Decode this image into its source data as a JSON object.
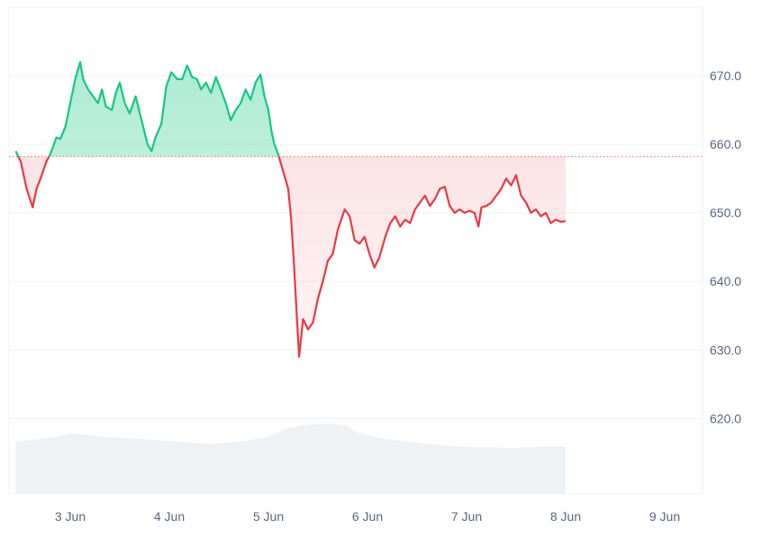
{
  "chart_data": {
    "type": "area",
    "baseline": 658.2,
    "ylim": [
      609,
      680
    ],
    "y_ticks": [
      620,
      630,
      640,
      650,
      660,
      670
    ],
    "y_tick_labels": [
      "620.0",
      "630.0",
      "640.0",
      "650.0",
      "660.0",
      "670.0"
    ],
    "x_ticks": [
      "3 Jun",
      "4 Jun",
      "5 Jun",
      "6 Jun",
      "7 Jun",
      "8 Jun",
      "9 Jun"
    ],
    "x_range_days": [
      2.45,
      9.4
    ],
    "grid": true,
    "colors": {
      "up_line": "#16c784",
      "up_fill": "#16c784",
      "down_line": "#ea3943",
      "down_fill": "#ea3943",
      "baseline": "#ea3943",
      "volume": "#eff2f5",
      "grid": "#eff2f5",
      "axis_text": "#58667e"
    },
    "price_series": [
      [
        2.45,
        659.0
      ],
      [
        2.5,
        657.5
      ],
      [
        2.56,
        653.5
      ],
      [
        2.62,
        650.8
      ],
      [
        2.66,
        653.5
      ],
      [
        2.7,
        655.0
      ],
      [
        2.76,
        657.5
      ],
      [
        2.8,
        658.6
      ],
      [
        2.86,
        661.0
      ],
      [
        2.9,
        660.8
      ],
      [
        2.95,
        662.5
      ],
      [
        3.0,
        666.0
      ],
      [
        3.05,
        669.5
      ],
      [
        3.1,
        672.0
      ],
      [
        3.13,
        669.5
      ],
      [
        3.18,
        668.0
      ],
      [
        3.23,
        667.0
      ],
      [
        3.28,
        666.0
      ],
      [
        3.32,
        668.0
      ],
      [
        3.36,
        665.5
      ],
      [
        3.42,
        665.0
      ],
      [
        3.46,
        667.5
      ],
      [
        3.5,
        669.0
      ],
      [
        3.55,
        666.0
      ],
      [
        3.6,
        664.5
      ],
      [
        3.66,
        667.0
      ],
      [
        3.72,
        663.5
      ],
      [
        3.78,
        660.0
      ],
      [
        3.82,
        659.0
      ],
      [
        3.86,
        661.0
      ],
      [
        3.92,
        663.0
      ],
      [
        3.97,
        668.5
      ],
      [
        4.02,
        670.5
      ],
      [
        4.08,
        669.5
      ],
      [
        4.13,
        669.5
      ],
      [
        4.18,
        671.5
      ],
      [
        4.23,
        669.8
      ],
      [
        4.28,
        669.5
      ],
      [
        4.32,
        668.0
      ],
      [
        4.37,
        669.0
      ],
      [
        4.42,
        667.5
      ],
      [
        4.47,
        669.8
      ],
      [
        4.52,
        668.0
      ],
      [
        4.57,
        666.0
      ],
      [
        4.62,
        663.5
      ],
      [
        4.67,
        665.0
      ],
      [
        4.72,
        666.0
      ],
      [
        4.77,
        668.0
      ],
      [
        4.82,
        666.5
      ],
      [
        4.87,
        669.0
      ],
      [
        4.92,
        670.2
      ],
      [
        4.96,
        667.0
      ],
      [
        5.0,
        665.0
      ],
      [
        5.03,
        662.0
      ],
      [
        5.06,
        660.0
      ],
      [
        5.1,
        658.5
      ],
      [
        5.15,
        656.0
      ],
      [
        5.2,
        653.5
      ],
      [
        5.23,
        649.0
      ],
      [
        5.26,
        642.0
      ],
      [
        5.29,
        634.0
      ],
      [
        5.31,
        629.0
      ],
      [
        5.35,
        634.5
      ],
      [
        5.4,
        633.0
      ],
      [
        5.45,
        634.0
      ],
      [
        5.5,
        637.5
      ],
      [
        5.55,
        640.0
      ],
      [
        5.6,
        643.0
      ],
      [
        5.65,
        644.0
      ],
      [
        5.7,
        647.5
      ],
      [
        5.77,
        650.5
      ],
      [
        5.82,
        649.5
      ],
      [
        5.87,
        646.0
      ],
      [
        5.92,
        645.5
      ],
      [
        5.97,
        646.5
      ],
      [
        6.02,
        644.0
      ],
      [
        6.07,
        642.0
      ],
      [
        6.12,
        643.5
      ],
      [
        6.18,
        646.5
      ],
      [
        6.23,
        648.5
      ],
      [
        6.28,
        649.5
      ],
      [
        6.33,
        648.0
      ],
      [
        6.38,
        649.0
      ],
      [
        6.43,
        648.5
      ],
      [
        6.48,
        650.5
      ],
      [
        6.53,
        651.5
      ],
      [
        6.58,
        652.5
      ],
      [
        6.63,
        651.0
      ],
      [
        6.68,
        652.0
      ],
      [
        6.73,
        653.5
      ],
      [
        6.78,
        653.8
      ],
      [
        6.83,
        651.0
      ],
      [
        6.88,
        650.0
      ],
      [
        6.93,
        650.5
      ],
      [
        6.98,
        650.0
      ],
      [
        7.03,
        650.3
      ],
      [
        7.08,
        650.0
      ],
      [
        7.12,
        648.0
      ],
      [
        7.15,
        650.8
      ],
      [
        7.2,
        651.0
      ],
      [
        7.25,
        651.5
      ],
      [
        7.3,
        652.5
      ],
      [
        7.35,
        653.5
      ],
      [
        7.4,
        655.0
      ],
      [
        7.45,
        654.0
      ],
      [
        7.5,
        655.5
      ],
      [
        7.55,
        652.5
      ],
      [
        7.6,
        651.5
      ],
      [
        7.65,
        650.0
      ],
      [
        7.7,
        650.5
      ],
      [
        7.75,
        649.5
      ],
      [
        7.8,
        650.0
      ],
      [
        7.85,
        648.5
      ],
      [
        7.9,
        649.0
      ],
      [
        7.95,
        648.7
      ],
      [
        8.0,
        648.8
      ]
    ],
    "volume_series": [
      [
        2.45,
        616.6
      ],
      [
        2.8,
        617.2
      ],
      [
        3.0,
        617.8
      ],
      [
        3.2,
        617.6
      ],
      [
        3.3,
        617.3
      ],
      [
        3.5,
        617.2
      ],
      [
        3.8,
        616.9
      ],
      [
        4.1,
        616.6
      ],
      [
        4.4,
        616.3
      ],
      [
        4.7,
        616.6
      ],
      [
        5.0,
        617.3
      ],
      [
        5.2,
        618.6
      ],
      [
        5.4,
        619.1
      ],
      [
        5.6,
        619.2
      ],
      [
        5.78,
        619.0
      ],
      [
        5.9,
        617.9
      ],
      [
        6.1,
        617.2
      ],
      [
        6.4,
        616.6
      ],
      [
        6.8,
        616.0
      ],
      [
        7.1,
        615.8
      ],
      [
        7.5,
        615.7
      ],
      [
        7.8,
        615.9
      ],
      [
        8.0,
        615.9
      ]
    ]
  }
}
